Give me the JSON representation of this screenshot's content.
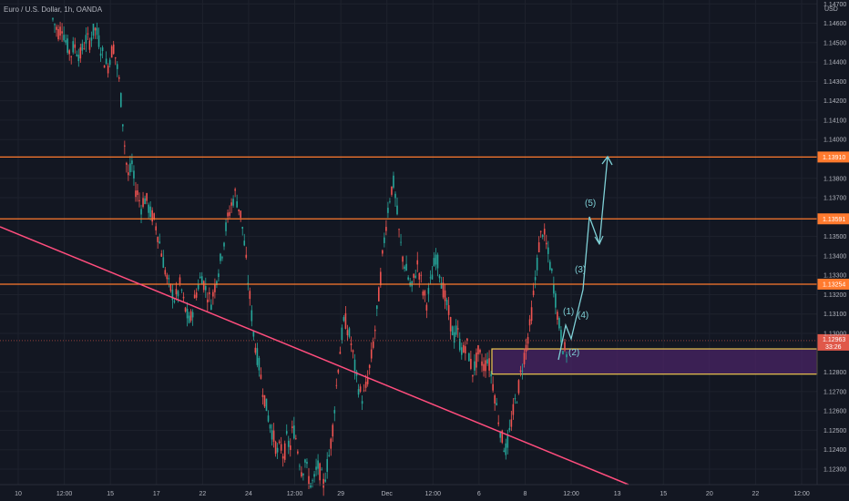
{
  "header": {
    "symbol_title": "Euro / U.S. Dollar, 1h, OANDA",
    "currency": "USD"
  },
  "colors": {
    "background": "#131722",
    "grid": "#1e222d",
    "up": "#26a69a",
    "down": "#ef5350",
    "level_line": "#ff7a2e",
    "trendline": "#ff4d7d",
    "zone_fill": "#4a2466",
    "zone_border": "#f0c850",
    "wave": "#7fd0d6",
    "price_badge": "#e0584a"
  },
  "chart_data": {
    "type": "candlestick",
    "x_ticks": [
      "10",
      "12:00",
      "15",
      "17",
      "22",
      "24",
      "12:00",
      "29",
      "Dec",
      "12:00",
      "6",
      "8",
      "12:00",
      "13",
      "15",
      "20",
      "22",
      "12:00"
    ],
    "y_ticks": [
      "1.14700",
      "1.14600",
      "1.14500",
      "1.14400",
      "1.14300",
      "1.14200",
      "1.14100",
      "1.14000",
      "1.13800",
      "1.13700",
      "1.13500",
      "1.13400",
      "1.13300",
      "1.13200",
      "1.13100",
      "1.13000",
      "1.12800",
      "1.12700",
      "1.12600",
      "1.12500",
      "1.12400",
      "1.12300"
    ],
    "ylim": [
      1.1222,
      1.1472
    ],
    "key_levels": [
      {
        "price": 1.1391,
        "label": "1.13910"
      },
      {
        "price": 1.13591,
        "label": "1.13591"
      },
      {
        "price": 1.13254,
        "label": "1.13254"
      }
    ],
    "current_price": {
      "price": 1.12963,
      "label": "1.12963",
      "countdown": "33:26"
    },
    "demand_zone": {
      "top": 1.1292,
      "bottom": 1.1279
    },
    "trendline": {
      "start_price": 1.1355,
      "end_price": 1.1222
    },
    "price_path": [
      1.1462,
      1.1458,
      1.1455,
      1.1459,
      1.1452,
      1.1447,
      1.1444,
      1.1449,
      1.1446,
      1.1443,
      1.1448,
      1.1452,
      1.145,
      1.1455,
      1.1457,
      1.1452,
      1.1446,
      1.1441,
      1.1437,
      1.1444,
      1.1448,
      1.1439,
      1.1428,
      1.141,
      1.139,
      1.138,
      1.1388,
      1.1375,
      1.1372,
      1.1365,
      1.137,
      1.1368,
      1.1362,
      1.136,
      1.1355,
      1.1348,
      1.134,
      1.1332,
      1.1325,
      1.1322,
      1.1318,
      1.132,
      1.1326,
      1.1316,
      1.131,
      1.1305,
      1.1312,
      1.132,
      1.1326,
      1.133,
      1.1324,
      1.132,
      1.1316,
      1.1322,
      1.133,
      1.1336,
      1.1345,
      1.1355,
      1.1362,
      1.1368,
      1.1372,
      1.1366,
      1.136,
      1.1346,
      1.133,
      1.1316,
      1.13,
      1.129,
      1.1282,
      1.1272,
      1.1264,
      1.1256,
      1.125,
      1.1244,
      1.1238,
      1.1242,
      1.1236,
      1.1246,
      1.124,
      1.1252,
      1.1246,
      1.1236,
      1.1228,
      1.1235,
      1.1226,
      1.1222,
      1.1224,
      1.1232,
      1.1228,
      1.1222,
      1.123,
      1.1238,
      1.125,
      1.1268,
      1.1285,
      1.1298,
      1.1308,
      1.1302,
      1.1296,
      1.1286,
      1.1276,
      1.127,
      1.1266,
      1.1272,
      1.128,
      1.129,
      1.1302,
      1.1316,
      1.1332,
      1.1348,
      1.1362,
      1.1372,
      1.1378,
      1.1366,
      1.135,
      1.134,
      1.1334,
      1.1328,
      1.1322,
      1.133,
      1.1336,
      1.1328,
      1.132,
      1.1316,
      1.1324,
      1.1332,
      1.134,
      1.1334,
      1.1326,
      1.1318,
      1.1312,
      1.1304,
      1.1298,
      1.1302,
      1.1294,
      1.129,
      1.1296,
      1.1288,
      1.128,
      1.1284,
      1.129,
      1.1286,
      1.1282,
      1.1288,
      1.128,
      1.1272,
      1.1262,
      1.1252,
      1.1244,
      1.124,
      1.1246,
      1.1256,
      1.1264,
      1.127,
      1.128,
      1.1288,
      1.1296,
      1.1304,
      1.1318,
      1.1332,
      1.1346,
      1.1354,
      1.1348,
      1.134,
      1.1332,
      1.1322,
      1.131,
      1.13,
      1.1292,
      1.129
    ]
  },
  "annotations": {
    "wave_labels": [
      "(1)",
      "(2)",
      "(3)",
      "(4)",
      "(5)"
    ]
  }
}
